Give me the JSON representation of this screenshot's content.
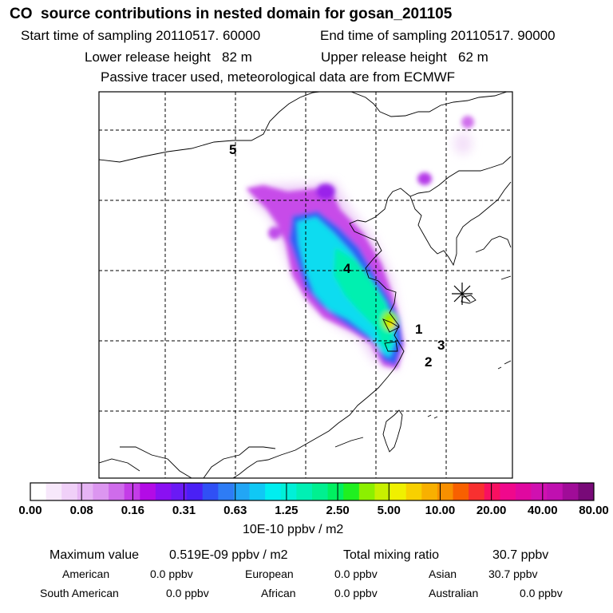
{
  "header": {
    "title": "CO  source contributions in nested domain for gosan_201105",
    "start_time": "Start time of sampling 20110517. 60000",
    "end_time": "End time of sampling 20110517. 90000",
    "lower_release": "Lower release height   82 m",
    "upper_release": "Upper release height   62 m",
    "tracer_note": "Passive tracer used, meteorological data are from ECMWF"
  },
  "chart_data": {
    "type": "heatmap",
    "title": "CO  source contributions in nested domain for gosan_201105",
    "region_labels": [
      "1",
      "2",
      "3",
      "4",
      "5"
    ],
    "colorbar": {
      "tick_labels": [
        "0.00",
        "0.08",
        "0.16",
        "0.31",
        "0.63",
        "1.25",
        "2.50",
        "5.00",
        "10.00",
        "20.00",
        "40.00",
        "80.00"
      ],
      "units": "10E-10 ppbv / m2",
      "colors": [
        "#ffffff",
        "#f7e8fb",
        "#f0d0f8",
        "#e6b4f4",
        "#dc96f0",
        "#cf6ceb",
        "#c43ce8",
        "#b30be6",
        "#8a10f2",
        "#6a1af5",
        "#4a20f5",
        "#3050f5",
        "#2e7cf5",
        "#22a6f5",
        "#10c8f5",
        "#00eef0",
        "#00f0d8",
        "#00f0b4",
        "#00f090",
        "#00f060",
        "#20f020",
        "#8cf000",
        "#c8f000",
        "#f0f000",
        "#f8d000",
        "#f8b000",
        "#f89000",
        "#f86000",
        "#f83030",
        "#f81060",
        "#f0088c",
        "#e008a0",
        "#d010b0",
        "#c010b0",
        "#a00c98",
        "#780a78"
      ]
    },
    "maximum_value": "0.519E-09 ppbv / m2",
    "total_mixing_ratio": "30.7 ppbv",
    "source_contributions": [
      {
        "region": "American",
        "value": "0.0 ppbv"
      },
      {
        "region": "European",
        "value": "0.0 ppbv"
      },
      {
        "region": "Asian",
        "value": "30.7 ppbv"
      },
      {
        "region": "South American",
        "value": "0.0 ppbv"
      },
      {
        "region": "African",
        "value": "0.0 ppbv"
      },
      {
        "region": "Australian",
        "value": "0.0 ppbv"
      }
    ]
  },
  "summary": {
    "max_label": "Maximum value",
    "total_label": "Total mixing ratio"
  }
}
